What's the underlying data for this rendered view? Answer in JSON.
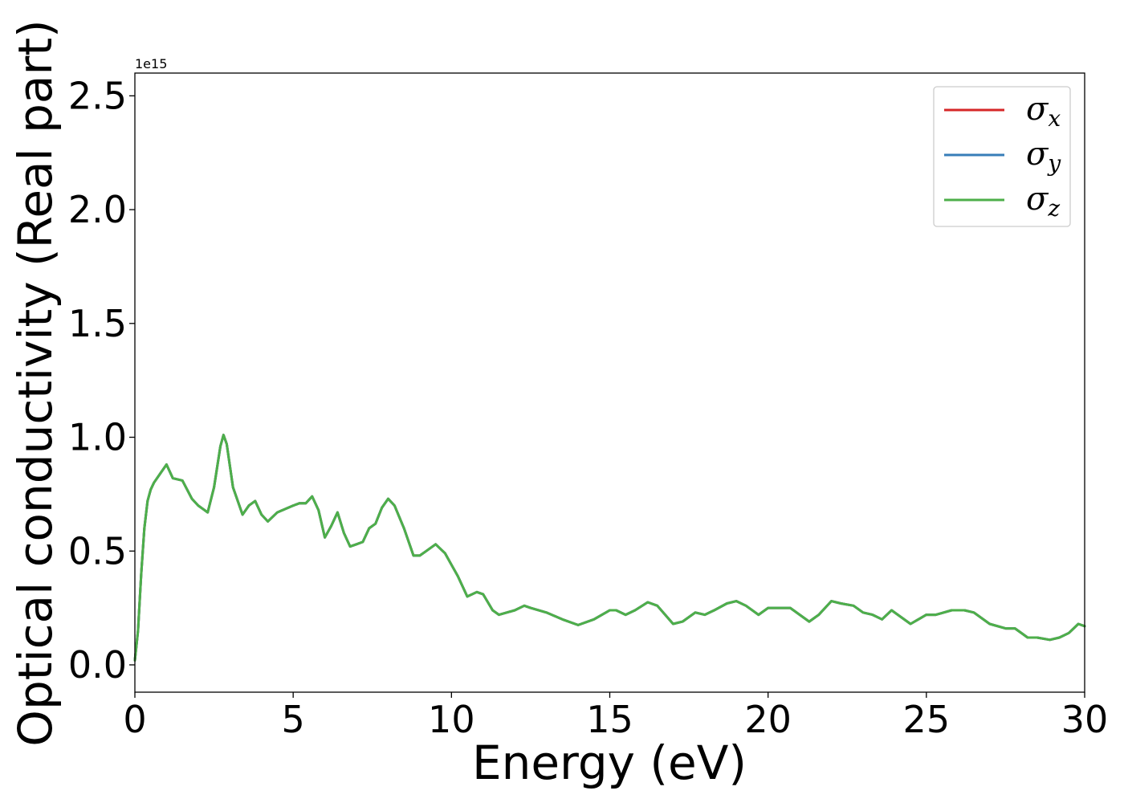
{
  "chart_data": {
    "type": "line",
    "title": "",
    "xlabel": "Energy (eV)",
    "ylabel": "Optical conductivity (Real part)",
    "y_offset_label": "1e15",
    "y_scale_factor": 1000000000000000.0,
    "xlim": [
      0,
      30
    ],
    "ylim": [
      -0.12,
      2.6
    ],
    "x_ticks": [
      0,
      5,
      10,
      15,
      20,
      25,
      30
    ],
    "x_tick_labels": [
      "0",
      "5",
      "10",
      "15",
      "20",
      "25",
      "30"
    ],
    "y_ticks": [
      0.0,
      0.5,
      1.0,
      1.5,
      2.0,
      2.5
    ],
    "y_tick_labels": [
      "0.0",
      "0.5",
      "1.0",
      "1.5",
      "2.0",
      "2.5"
    ],
    "grid": false,
    "legend_position": "top-right",
    "x": [
      0.0,
      0.1,
      0.2,
      0.3,
      0.4,
      0.5,
      0.6,
      0.8,
      1.0,
      1.2,
      1.5,
      1.8,
      2.0,
      2.3,
      2.5,
      2.7,
      2.8,
      2.9,
      3.1,
      3.4,
      3.6,
      3.8,
      4.0,
      4.2,
      4.5,
      5.0,
      5.2,
      5.4,
      5.6,
      5.8,
      6.0,
      6.2,
      6.4,
      6.6,
      6.8,
      7.0,
      7.2,
      7.4,
      7.6,
      7.8,
      8.0,
      8.2,
      8.5,
      8.8,
      9.0,
      9.2,
      9.5,
      9.8,
      10.0,
      10.2,
      10.5,
      10.8,
      11.0,
      11.3,
      11.5,
      12.0,
      12.3,
      12.5,
      13.0,
      13.5,
      14.0,
      14.5,
      15.0,
      15.2,
      15.5,
      15.8,
      16.2,
      16.5,
      17.0,
      17.3,
      17.7,
      18.0,
      18.3,
      18.7,
      19.0,
      19.3,
      19.7,
      20.0,
      20.3,
      20.7,
      21.0,
      21.3,
      21.6,
      22.0,
      22.3,
      22.7,
      23.0,
      23.3,
      23.6,
      23.9,
      24.2,
      24.5,
      25.0,
      25.3,
      25.8,
      26.2,
      26.5,
      27.0,
      27.5,
      27.8,
      28.2,
      28.5,
      28.9,
      29.2,
      29.5,
      29.8,
      30.0
    ],
    "series": [
      {
        "name": "σx",
        "symbol": "σ",
        "subscript": "x",
        "color": "#d62728",
        "values": [
          0.02,
          0.15,
          0.4,
          0.6,
          0.72,
          0.77,
          0.8,
          0.84,
          0.88,
          0.82,
          0.81,
          0.73,
          0.7,
          0.67,
          0.78,
          0.96,
          1.01,
          0.97,
          0.78,
          0.66,
          0.7,
          0.72,
          0.66,
          0.63,
          0.67,
          0.7,
          0.71,
          0.71,
          0.74,
          0.68,
          0.56,
          0.61,
          0.67,
          0.58,
          0.52,
          0.53,
          0.54,
          0.6,
          0.62,
          0.69,
          0.73,
          0.7,
          0.6,
          0.48,
          0.48,
          0.5,
          0.53,
          0.49,
          0.44,
          0.39,
          0.3,
          0.32,
          0.31,
          0.24,
          0.22,
          0.24,
          0.26,
          0.25,
          0.23,
          0.2,
          0.175,
          0.2,
          0.24,
          0.24,
          0.22,
          0.24,
          0.275,
          0.26,
          0.18,
          0.19,
          0.23,
          0.22,
          0.24,
          0.27,
          0.28,
          0.26,
          0.22,
          0.25,
          0.25,
          0.25,
          0.22,
          0.19,
          0.22,
          0.28,
          0.27,
          0.26,
          0.23,
          0.22,
          0.2,
          0.24,
          0.21,
          0.18,
          0.22,
          0.22,
          0.24,
          0.24,
          0.23,
          0.18,
          0.16,
          0.16,
          0.12,
          0.12,
          0.11,
          0.12,
          0.14,
          0.18,
          0.17
        ]
      },
      {
        "name": "σy",
        "symbol": "σ",
        "subscript": "y",
        "color": "#377eb8",
        "values": [
          0.02,
          0.15,
          0.4,
          0.6,
          0.72,
          0.77,
          0.8,
          0.84,
          0.88,
          0.82,
          0.81,
          0.73,
          0.7,
          0.67,
          0.78,
          0.96,
          1.01,
          0.97,
          0.78,
          0.66,
          0.7,
          0.72,
          0.66,
          0.63,
          0.67,
          0.7,
          0.71,
          0.71,
          0.74,
          0.68,
          0.56,
          0.61,
          0.67,
          0.58,
          0.52,
          0.53,
          0.54,
          0.6,
          0.62,
          0.69,
          0.73,
          0.7,
          0.6,
          0.48,
          0.48,
          0.5,
          0.53,
          0.49,
          0.44,
          0.39,
          0.3,
          0.32,
          0.31,
          0.24,
          0.22,
          0.24,
          0.26,
          0.25,
          0.23,
          0.2,
          0.175,
          0.2,
          0.24,
          0.24,
          0.22,
          0.24,
          0.275,
          0.26,
          0.18,
          0.19,
          0.23,
          0.22,
          0.24,
          0.27,
          0.28,
          0.26,
          0.22,
          0.25,
          0.25,
          0.25,
          0.22,
          0.19,
          0.22,
          0.28,
          0.27,
          0.26,
          0.23,
          0.22,
          0.2,
          0.24,
          0.21,
          0.18,
          0.22,
          0.22,
          0.24,
          0.24,
          0.23,
          0.18,
          0.16,
          0.16,
          0.12,
          0.12,
          0.11,
          0.12,
          0.14,
          0.18,
          0.17
        ]
      },
      {
        "name": "σz",
        "symbol": "σ",
        "subscript": "z",
        "color": "#4daf4a",
        "values": [
          0.02,
          0.15,
          0.4,
          0.6,
          0.72,
          0.77,
          0.8,
          0.84,
          0.88,
          0.82,
          0.81,
          0.73,
          0.7,
          0.67,
          0.78,
          0.96,
          1.01,
          0.97,
          0.78,
          0.66,
          0.7,
          0.72,
          0.66,
          0.63,
          0.67,
          0.7,
          0.71,
          0.71,
          0.74,
          0.68,
          0.56,
          0.61,
          0.67,
          0.58,
          0.52,
          0.53,
          0.54,
          0.6,
          0.62,
          0.69,
          0.73,
          0.7,
          0.6,
          0.48,
          0.48,
          0.5,
          0.53,
          0.49,
          0.44,
          0.39,
          0.3,
          0.32,
          0.31,
          0.24,
          0.22,
          0.24,
          0.26,
          0.25,
          0.23,
          0.2,
          0.175,
          0.2,
          0.24,
          0.24,
          0.22,
          0.24,
          0.275,
          0.26,
          0.18,
          0.19,
          0.23,
          0.22,
          0.24,
          0.27,
          0.28,
          0.26,
          0.22,
          0.25,
          0.25,
          0.25,
          0.22,
          0.19,
          0.22,
          0.28,
          0.27,
          0.26,
          0.23,
          0.22,
          0.2,
          0.24,
          0.21,
          0.18,
          0.22,
          0.22,
          0.24,
          0.24,
          0.23,
          0.18,
          0.16,
          0.16,
          0.12,
          0.12,
          0.11,
          0.12,
          0.14,
          0.18,
          0.17
        ]
      }
    ]
  }
}
